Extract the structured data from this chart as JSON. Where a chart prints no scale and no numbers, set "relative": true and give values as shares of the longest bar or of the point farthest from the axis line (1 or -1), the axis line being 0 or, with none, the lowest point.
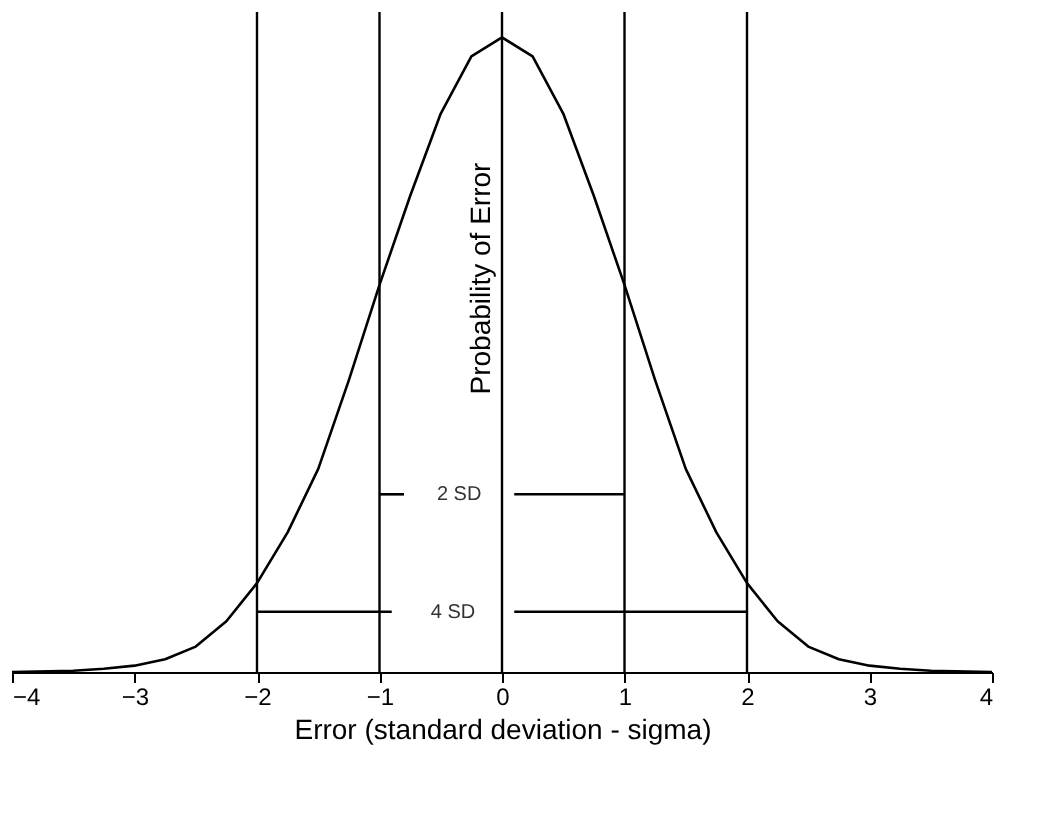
{
  "chart_data": {
    "type": "line",
    "relative": true,
    "xlabel": "Error (standard deviation - sigma)",
    "ylabel": "Probability of Error",
    "xlim": [
      -4,
      4
    ],
    "xticks": [
      -4,
      -3,
      -2,
      -1,
      0,
      1,
      2,
      3,
      4
    ],
    "grid": false,
    "marker": "none",
    "line_style": "solid",
    "series": [
      {
        "color": "#000000",
        "x": [
          -4,
          -3.5,
          -3.25,
          -3,
          -2.75,
          -2.5,
          -2.25,
          -2,
          -1.75,
          -1.5,
          -1.25,
          -1,
          -0.75,
          -0.5,
          -0.25,
          0,
          0.25,
          0.5,
          0.75,
          1,
          1.25,
          1.5,
          1.75,
          2,
          2.25,
          2.5,
          2.75,
          3,
          3.25,
          3.5,
          4
        ],
        "values": [
          0,
          0.002,
          0.005,
          0.01,
          0.02,
          0.04,
          0.08,
          0.14,
          0.22,
          0.32,
          0.46,
          0.61,
          0.75,
          0.88,
          0.97,
          1,
          0.97,
          0.88,
          0.75,
          0.61,
          0.46,
          0.32,
          0.22,
          0.14,
          0.08,
          0.04,
          0.02,
          0.01,
          0.005,
          0.002,
          0
        ]
      },
      {
        "color": "#000000",
        "x": [
          -1,
          -0.8
        ],
        "values": [
          0.28,
          0.28
        ]
      },
      {
        "color": "#000000",
        "x": [
          0.1,
          1
        ],
        "values": [
          0.28,
          0.28
        ]
      },
      {
        "color": "#000000",
        "x": [
          -2,
          -0.9
        ],
        "values": [
          0.095,
          0.095
        ]
      },
      {
        "color": "#000000",
        "x": [
          0.1,
          2
        ],
        "values": [
          0.095,
          0.095
        ]
      }
    ],
    "ref_lines": [
      {
        "axis": "x",
        "value": -2
      },
      {
        "axis": "x",
        "value": -1
      },
      {
        "axis": "x",
        "value": 0
      },
      {
        "axis": "x",
        "value": 1
      },
      {
        "axis": "x",
        "value": 2
      }
    ],
    "annotations": [
      "2 SD",
      "4 SD"
    ]
  }
}
